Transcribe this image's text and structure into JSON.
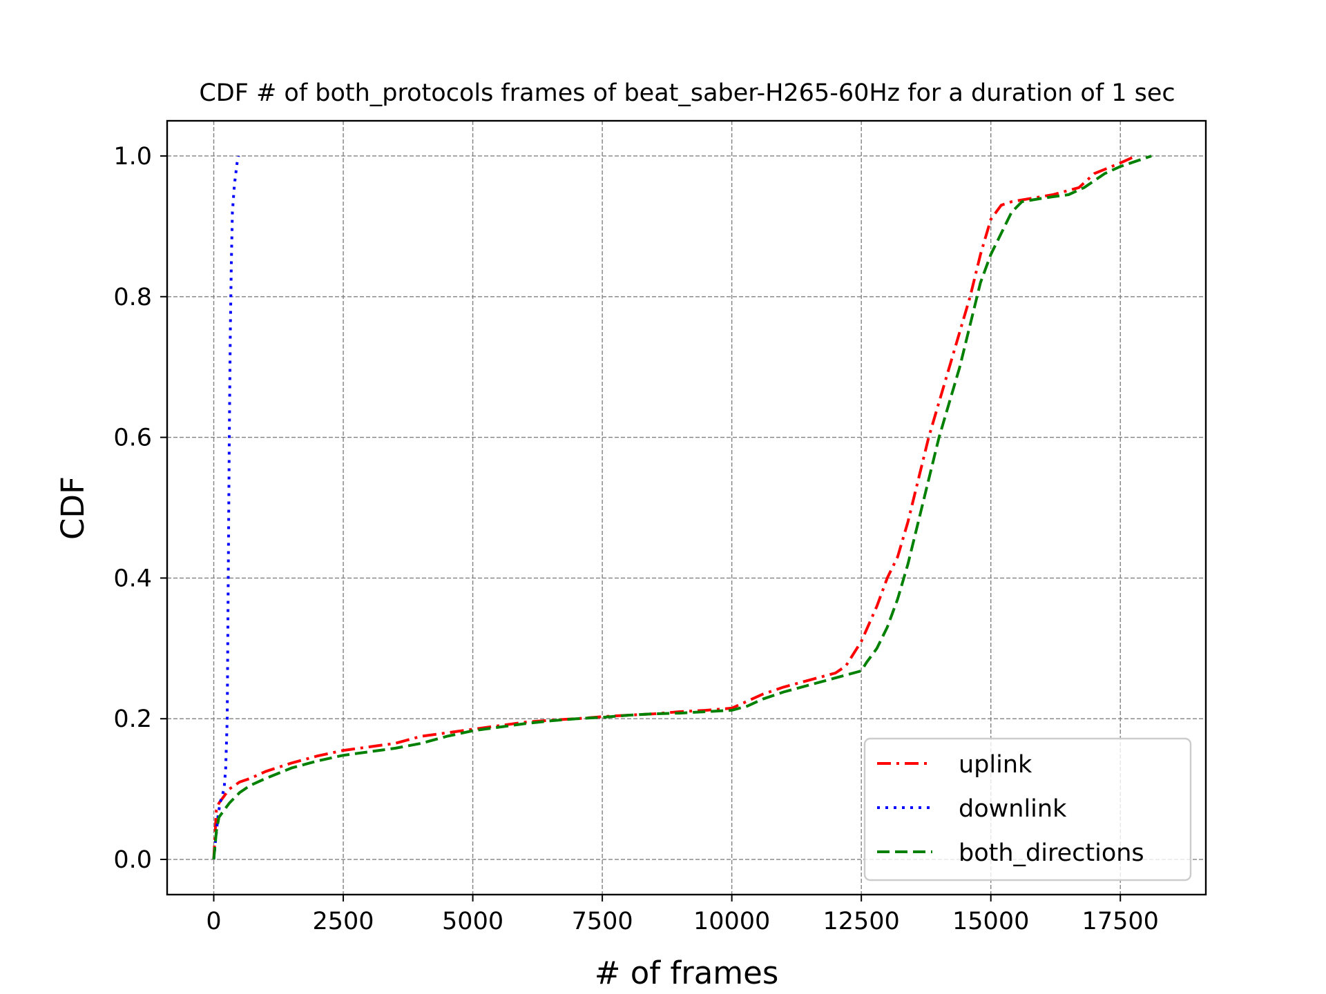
{
  "chart_data": {
    "type": "line",
    "title": "CDF # of both_protocols frames of beat_saber-H265-60Hz for a duration of 1 sec",
    "xlabel": "# of frames",
    "ylabel": "CDF",
    "xlim": [
      -900,
      19150
    ],
    "ylim": [
      -0.05,
      1.05
    ],
    "xticks": [
      0,
      2500,
      5000,
      7500,
      10000,
      12500,
      15000,
      17500
    ],
    "xtick_labels": [
      "0",
      "2500",
      "5000",
      "7500",
      "10000",
      "12500",
      "15000",
      "17500"
    ],
    "yticks": [
      0.0,
      0.2,
      0.4,
      0.6,
      0.8,
      1.0
    ],
    "ytick_labels": [
      "0.0",
      "0.2",
      "0.4",
      "0.6",
      "0.8",
      "1.0"
    ],
    "grid": true,
    "legend_position": "lower-right",
    "series": [
      {
        "name": "uplink",
        "color": "#ff0000",
        "linestyle": "dashdot",
        "x": [
          0,
          50,
          100,
          200,
          300,
          500,
          700,
          1000,
          1500,
          2000,
          2500,
          3000,
          3500,
          4000,
          4500,
          5000,
          5500,
          6000,
          6500,
          7000,
          7500,
          8000,
          8500,
          9000,
          9500,
          10000,
          10300,
          10600,
          11000,
          11500,
          12000,
          12200,
          12500,
          12800,
          13000,
          13200,
          13400,
          13600,
          13800,
          14000,
          14200,
          14400,
          14600,
          14800,
          15000,
          15200,
          15400,
          15800,
          16200,
          16700,
          17000,
          17500,
          17800
        ],
        "y": [
          0.0,
          0.07,
          0.08,
          0.09,
          0.1,
          0.11,
          0.115,
          0.125,
          0.137,
          0.147,
          0.155,
          0.16,
          0.165,
          0.175,
          0.18,
          0.185,
          0.19,
          0.195,
          0.198,
          0.2,
          0.203,
          0.205,
          0.207,
          0.21,
          0.212,
          0.215,
          0.225,
          0.235,
          0.245,
          0.255,
          0.265,
          0.275,
          0.31,
          0.36,
          0.4,
          0.43,
          0.48,
          0.54,
          0.6,
          0.65,
          0.7,
          0.75,
          0.8,
          0.86,
          0.91,
          0.93,
          0.935,
          0.94,
          0.945,
          0.955,
          0.975,
          0.99,
          1.0
        ]
      },
      {
        "name": "downlink",
        "color": "#0000ff",
        "linestyle": "dotted",
        "x": [
          0,
          40,
          80,
          120,
          160,
          200,
          230,
          260,
          280,
          300,
          320,
          340,
          360,
          400,
          450,
          480
        ],
        "y": [
          0.0,
          0.03,
          0.06,
          0.08,
          0.09,
          0.1,
          0.13,
          0.2,
          0.4,
          0.6,
          0.75,
          0.85,
          0.92,
          0.96,
          0.99,
          1.0
        ]
      },
      {
        "name": "both_directions",
        "color": "#008000",
        "linestyle": "dashed",
        "x": [
          0,
          50,
          100,
          200,
          300,
          500,
          700,
          1000,
          1500,
          2000,
          2500,
          3000,
          3500,
          4000,
          4500,
          5000,
          5500,
          6000,
          6500,
          7000,
          7500,
          8000,
          8500,
          9000,
          9500,
          10000,
          10300,
          10600,
          11000,
          11500,
          12000,
          12500,
          12600,
          12800,
          13000,
          13200,
          13400,
          13600,
          13800,
          14000,
          14200,
          14400,
          14600,
          14800,
          15000,
          15200,
          15400,
          15600,
          16000,
          16500,
          16800,
          17200,
          17500,
          18100
        ],
        "y": [
          0.0,
          0.04,
          0.06,
          0.07,
          0.08,
          0.095,
          0.105,
          0.115,
          0.13,
          0.14,
          0.148,
          0.153,
          0.158,
          0.165,
          0.175,
          0.183,
          0.188,
          0.193,
          0.197,
          0.2,
          0.202,
          0.205,
          0.207,
          0.208,
          0.21,
          0.212,
          0.218,
          0.228,
          0.238,
          0.248,
          0.258,
          0.268,
          0.28,
          0.3,
          0.33,
          0.37,
          0.42,
          0.48,
          0.54,
          0.6,
          0.65,
          0.7,
          0.76,
          0.82,
          0.86,
          0.89,
          0.92,
          0.935,
          0.94,
          0.945,
          0.955,
          0.975,
          0.985,
          1.0
        ]
      }
    ]
  }
}
